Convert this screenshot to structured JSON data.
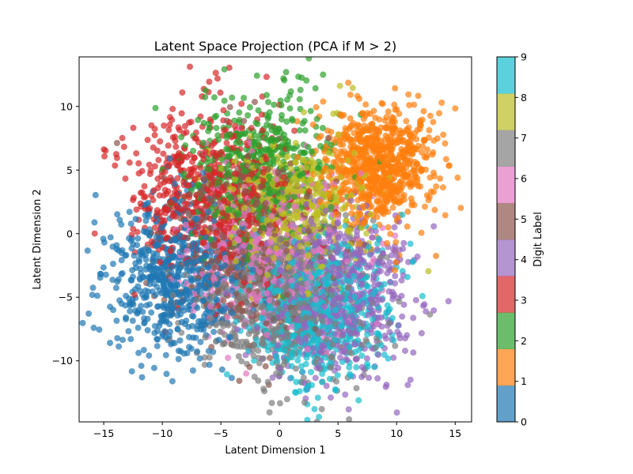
{
  "chart_data": {
    "type": "scatter",
    "title": "Latent Space Projection (PCA if M > 2)",
    "xlabel": "Latent Dimension 1",
    "ylabel": "Latent Dimension 2",
    "xlim": [
      -17.1,
      16.4
    ],
    "ylim": [
      -14.8,
      13.9
    ],
    "xticks": [
      -15,
      -10,
      -5,
      0,
      5,
      10,
      15
    ],
    "yticks": [
      -10,
      -5,
      0,
      5,
      10
    ],
    "grid": false,
    "colormap": "tab10",
    "marker_alpha": 0.7,
    "colorbar": {
      "label": "Digit Label",
      "range": [
        0,
        9
      ],
      "ticks": [
        0,
        1,
        2,
        3,
        4,
        5,
        6,
        7,
        8,
        9
      ],
      "colors": [
        "#1f77b4",
        "#ff7f0e",
        "#2ca02c",
        "#d62728",
        "#9467bd",
        "#8c564b",
        "#e377c2",
        "#7f7f7f",
        "#bcbd22",
        "#17becf"
      ]
    },
    "series": [
      {
        "label": 0,
        "center": [
          -9.0,
          -3.5
        ],
        "spread": [
          3.0,
          3.2
        ],
        "count": 700
      },
      {
        "label": 1,
        "center": [
          8.5,
          5.5
        ],
        "spread": [
          2.4,
          2.4
        ],
        "count": 800
      },
      {
        "label": 2,
        "center": [
          -1.8,
          5.0
        ],
        "spread": [
          3.2,
          3.0
        ],
        "count": 520
      },
      {
        "label": 3,
        "center": [
          -6.0,
          3.2
        ],
        "spread": [
          3.5,
          3.2
        ],
        "count": 620
      },
      {
        "label": 4,
        "center": [
          5.0,
          -5.0
        ],
        "spread": [
          3.2,
          3.2
        ],
        "count": 620
      },
      {
        "label": 5,
        "center": [
          -2.5,
          -1.0
        ],
        "spread": [
          3.5,
          3.5
        ],
        "count": 520
      },
      {
        "label": 6,
        "center": [
          -1.0,
          -1.5
        ],
        "spread": [
          3.5,
          3.3
        ],
        "count": 520
      },
      {
        "label": 7,
        "center": [
          0.5,
          -5.5
        ],
        "spread": [
          3.5,
          3.2
        ],
        "count": 650
      },
      {
        "label": 8,
        "center": [
          1.0,
          2.0
        ],
        "spread": [
          3.0,
          2.8
        ],
        "count": 520
      },
      {
        "label": 9,
        "center": [
          3.5,
          -6.0
        ],
        "spread": [
          3.0,
          2.8
        ],
        "count": 650
      }
    ]
  }
}
